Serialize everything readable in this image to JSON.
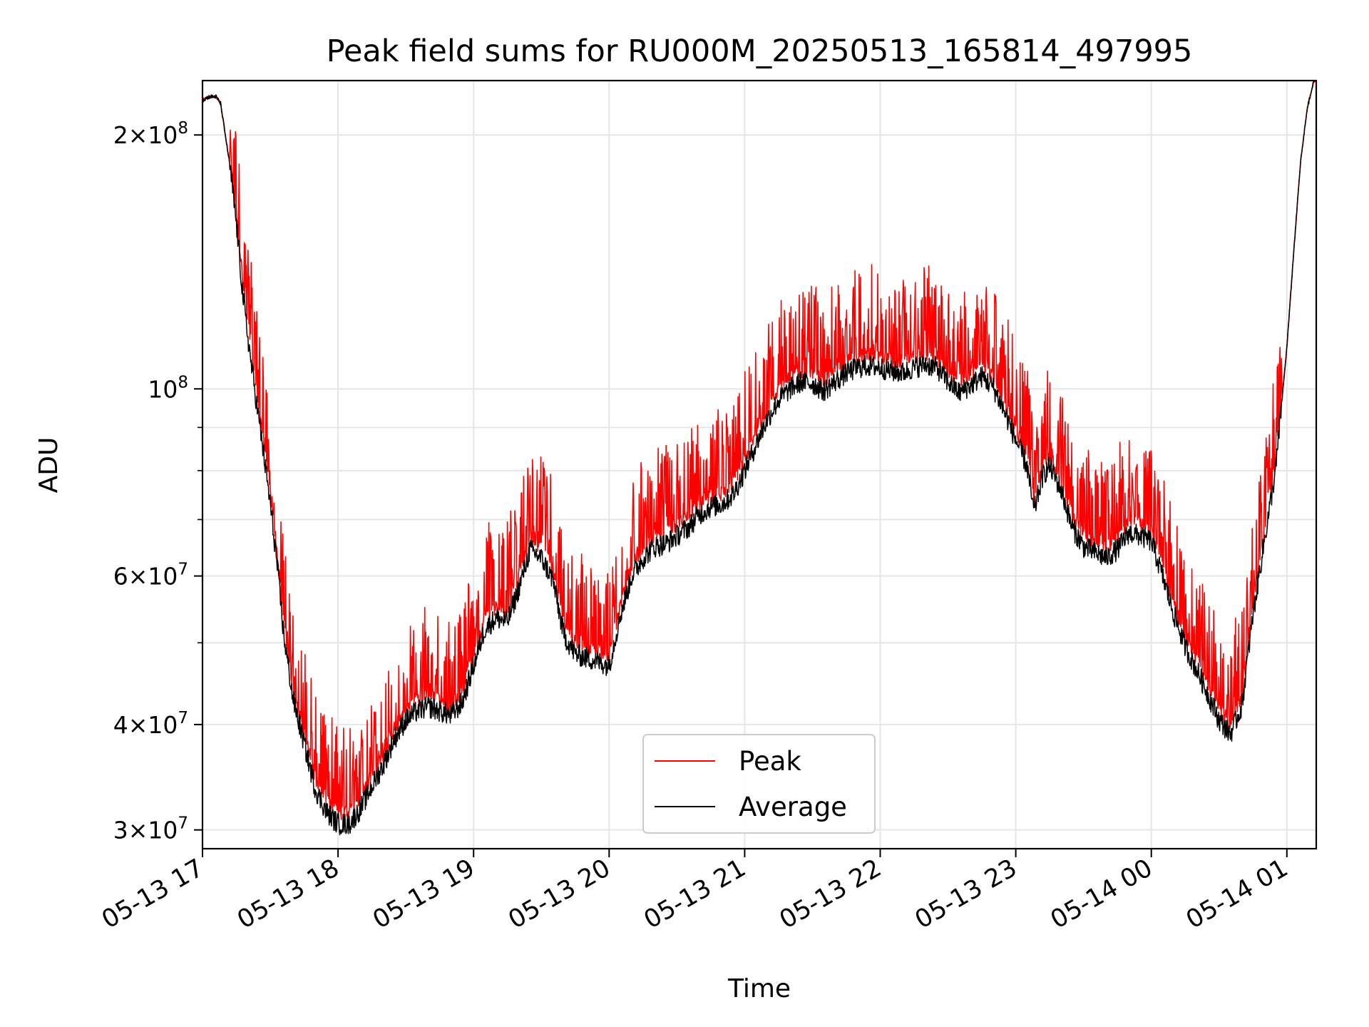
{
  "chart_data": {
    "type": "line",
    "title": "Peak field sums for RU000M_20250513_165814_497995",
    "xlabel": "Time",
    "ylabel": "ADU",
    "x_scale": "time",
    "y_scale": "log",
    "xlim": [
      "2025-05-13T17:00",
      "2025-05-14T01:13"
    ],
    "ylim": [
      28500000,
      232000000
    ],
    "x_ticks": [
      {
        "value": "2025-05-13T17:00",
        "label": "05-13 17"
      },
      {
        "value": "2025-05-13T18:00",
        "label": "05-13 18"
      },
      {
        "value": "2025-05-13T19:00",
        "label": "05-13 19"
      },
      {
        "value": "2025-05-13T20:00",
        "label": "05-13 20"
      },
      {
        "value": "2025-05-13T21:00",
        "label": "05-13 21"
      },
      {
        "value": "2025-05-13T22:00",
        "label": "05-13 22"
      },
      {
        "value": "2025-05-13T23:00",
        "label": "05-13 23"
      },
      {
        "value": "2025-05-14T00:00",
        "label": "05-14 00"
      },
      {
        "value": "2025-05-14T01:00",
        "label": "05-14 01"
      }
    ],
    "y_ticks": [
      {
        "value": 30000000,
        "mantissa": "3",
        "exponent": "7"
      },
      {
        "value": 40000000,
        "mantissa": "4",
        "exponent": "7"
      },
      {
        "value": 60000000,
        "mantissa": "6",
        "exponent": "7"
      },
      {
        "value": 100000000,
        "mantissa": "",
        "exponent": "8"
      },
      {
        "value": 200000000,
        "mantissa": "2",
        "exponent": "8"
      }
    ],
    "y_minor_ticks": [
      50000000,
      70000000,
      80000000,
      90000000
    ],
    "grid": true,
    "legend": {
      "position": "lower-center"
    },
    "series": [
      {
        "name": "Peak",
        "color": "#ff0000",
        "noise": {
          "spike_amplitude": 0.22,
          "spike_probability": 0.45
        },
        "points": [
          [
            "2025-05-13T17:00",
            220000000
          ],
          [
            "2025-05-13T17:03",
            222000000
          ],
          [
            "2025-05-13T17:06",
            222000000
          ],
          [
            "2025-05-13T17:08",
            218000000
          ],
          [
            "2025-05-13T17:12",
            185000000
          ],
          [
            "2025-05-13T17:15",
            157000000
          ],
          [
            "2025-05-13T17:18",
            128000000
          ],
          [
            "2025-05-13T17:21",
            110000000
          ],
          [
            "2025-05-13T17:24",
            96000000
          ],
          [
            "2025-05-13T17:27",
            84000000
          ],
          [
            "2025-05-13T17:30",
            73000000
          ],
          [
            "2025-05-13T17:33",
            62000000
          ],
          [
            "2025-05-13T17:36",
            51000000
          ],
          [
            "2025-05-13T17:40",
            43000000
          ],
          [
            "2025-05-13T17:45",
            38000000
          ],
          [
            "2025-05-13T17:50",
            33500000
          ],
          [
            "2025-05-13T17:55",
            31500000
          ],
          [
            "2025-05-13T18:00",
            30500000
          ],
          [
            "2025-05-13T18:05",
            30500000
          ],
          [
            "2025-05-13T18:10",
            31800000
          ],
          [
            "2025-05-13T18:15",
            33800000
          ],
          [
            "2025-05-13T18:20",
            35800000
          ],
          [
            "2025-05-13T18:25",
            38500000
          ],
          [
            "2025-05-13T18:30",
            40500000
          ],
          [
            "2025-05-13T18:35",
            41500000
          ],
          [
            "2025-05-13T18:40",
            42000000
          ],
          [
            "2025-05-13T18:45",
            41500000
          ],
          [
            "2025-05-13T18:50",
            41000000
          ],
          [
            "2025-05-13T18:55",
            42500000
          ],
          [
            "2025-05-13T19:00",
            47000000
          ],
          [
            "2025-05-13T19:05",
            52000000
          ],
          [
            "2025-05-13T19:10",
            53500000
          ],
          [
            "2025-05-13T19:15",
            53000000
          ],
          [
            "2025-05-13T19:20",
            58000000
          ],
          [
            "2025-05-13T19:25",
            64500000
          ],
          [
            "2025-05-13T19:30",
            63000000
          ],
          [
            "2025-05-13T19:35",
            59500000
          ],
          [
            "2025-05-13T19:40",
            51000000
          ],
          [
            "2025-05-13T19:45",
            48500000
          ],
          [
            "2025-05-13T19:50",
            48000000
          ],
          [
            "2025-05-13T19:55",
            47500000
          ],
          [
            "2025-05-13T20:00",
            47000000
          ],
          [
            "2025-05-13T20:05",
            54000000
          ],
          [
            "2025-05-13T20:10",
            60000000
          ],
          [
            "2025-05-13T20:15",
            63000000
          ],
          [
            "2025-05-13T20:20",
            65000000
          ],
          [
            "2025-05-13T20:25",
            65500000
          ],
          [
            "2025-05-13T20:30",
            67000000
          ],
          [
            "2025-05-13T20:35",
            68500000
          ],
          [
            "2025-05-13T20:40",
            71000000
          ],
          [
            "2025-05-13T20:45",
            72500000
          ],
          [
            "2025-05-13T20:50",
            73000000
          ],
          [
            "2025-05-13T20:55",
            75000000
          ],
          [
            "2025-05-13T21:00",
            80000000
          ],
          [
            "2025-05-13T21:05",
            86000000
          ],
          [
            "2025-05-13T21:10",
            92000000
          ],
          [
            "2025-05-13T21:15",
            97000000
          ],
          [
            "2025-05-13T21:20",
            100000000
          ],
          [
            "2025-05-13T21:25",
            102000000
          ],
          [
            "2025-05-13T21:30",
            101500000
          ],
          [
            "2025-05-13T21:35",
            99500000
          ],
          [
            "2025-05-13T21:40",
            102000000
          ],
          [
            "2025-05-13T21:45",
            104500000
          ],
          [
            "2025-05-13T21:50",
            106000000
          ],
          [
            "2025-05-13T21:55",
            106500000
          ],
          [
            "2025-05-13T22:00",
            106000000
          ],
          [
            "2025-05-13T22:05",
            105000000
          ],
          [
            "2025-05-13T22:10",
            104500000
          ],
          [
            "2025-05-13T22:15",
            106000000
          ],
          [
            "2025-05-13T22:20",
            107000000
          ],
          [
            "2025-05-13T22:25",
            106000000
          ],
          [
            "2025-05-13T22:30",
            102000000
          ],
          [
            "2025-05-13T22:35",
            99000000
          ],
          [
            "2025-05-13T22:40",
            101000000
          ],
          [
            "2025-05-13T22:45",
            103500000
          ],
          [
            "2025-05-13T22:50",
            100500000
          ],
          [
            "2025-05-13T22:55",
            94000000
          ],
          [
            "2025-05-13T23:00",
            87000000
          ],
          [
            "2025-05-13T23:05",
            81000000
          ],
          [
            "2025-05-13T23:08",
            71500000
          ],
          [
            "2025-05-13T23:12",
            79000000
          ],
          [
            "2025-05-13T23:15",
            81000000
          ],
          [
            "2025-05-13T23:20",
            76000000
          ],
          [
            "2025-05-13T23:25",
            68500000
          ],
          [
            "2025-05-13T23:30",
            65000000
          ],
          [
            "2025-05-13T23:35",
            64000000
          ],
          [
            "2025-05-13T23:40",
            63000000
          ],
          [
            "2025-05-13T23:45",
            64500000
          ],
          [
            "2025-05-13T23:50",
            67500000
          ],
          [
            "2025-05-13T23:55",
            67000000
          ],
          [
            "2025-05-14T00:00",
            66000000
          ],
          [
            "2025-05-14T00:05",
            60000000
          ],
          [
            "2025-05-14T00:10",
            54000000
          ],
          [
            "2025-05-14T00:15",
            49500000
          ],
          [
            "2025-05-14T00:20",
            46500000
          ],
          [
            "2025-05-14T00:25",
            43500000
          ],
          [
            "2025-05-14T00:30",
            40500000
          ],
          [
            "2025-05-14T00:35",
            39000000
          ],
          [
            "2025-05-14T00:40",
            42000000
          ],
          [
            "2025-05-14T00:45",
            54000000
          ],
          [
            "2025-05-14T00:50",
            66000000
          ],
          [
            "2025-05-14T00:55",
            80000000
          ],
          [
            "2025-05-14T01:00",
            112000000
          ],
          [
            "2025-05-14T01:03",
            145000000
          ],
          [
            "2025-05-14T01:06",
            185000000
          ],
          [
            "2025-05-14T01:09",
            215000000
          ],
          [
            "2025-05-14T01:12",
            232000000
          ],
          [
            "2025-05-14T01:13",
            232000000
          ]
        ]
      },
      {
        "name": "Average",
        "color": "#000000",
        "noise": {
          "jitter_amplitude": 0.03
        },
        "points": [
          [
            "2025-05-13T17:00",
            220000000
          ],
          [
            "2025-05-13T17:03",
            222000000
          ],
          [
            "2025-05-13T17:06",
            222000000
          ],
          [
            "2025-05-13T17:08",
            218000000
          ],
          [
            "2025-05-13T17:12",
            185000000
          ],
          [
            "2025-05-13T17:15",
            157000000
          ],
          [
            "2025-05-13T17:18",
            128000000
          ],
          [
            "2025-05-13T17:21",
            110000000
          ],
          [
            "2025-05-13T17:24",
            96000000
          ],
          [
            "2025-05-13T17:27",
            84000000
          ],
          [
            "2025-05-13T17:30",
            73000000
          ],
          [
            "2025-05-13T17:33",
            62000000
          ],
          [
            "2025-05-13T17:36",
            51000000
          ],
          [
            "2025-05-13T17:40",
            43000000
          ],
          [
            "2025-05-13T17:45",
            38000000
          ],
          [
            "2025-05-13T17:50",
            33500000
          ],
          [
            "2025-05-13T17:55",
            31500000
          ],
          [
            "2025-05-13T18:00",
            30500000
          ],
          [
            "2025-05-13T18:05",
            30500000
          ],
          [
            "2025-05-13T18:10",
            31800000
          ],
          [
            "2025-05-13T18:15",
            33800000
          ],
          [
            "2025-05-13T18:20",
            35800000
          ],
          [
            "2025-05-13T18:25",
            38500000
          ],
          [
            "2025-05-13T18:30",
            40500000
          ],
          [
            "2025-05-13T18:35",
            41500000
          ],
          [
            "2025-05-13T18:40",
            42000000
          ],
          [
            "2025-05-13T18:45",
            41500000
          ],
          [
            "2025-05-13T18:50",
            41000000
          ],
          [
            "2025-05-13T18:55",
            42500000
          ],
          [
            "2025-05-13T19:00",
            47000000
          ],
          [
            "2025-05-13T19:05",
            52000000
          ],
          [
            "2025-05-13T19:10",
            53500000
          ],
          [
            "2025-05-13T19:15",
            53000000
          ],
          [
            "2025-05-13T19:20",
            58000000
          ],
          [
            "2025-05-13T19:25",
            64500000
          ],
          [
            "2025-05-13T19:30",
            63000000
          ],
          [
            "2025-05-13T19:35",
            59500000
          ],
          [
            "2025-05-13T19:40",
            51000000
          ],
          [
            "2025-05-13T19:45",
            48500000
          ],
          [
            "2025-05-13T19:50",
            48000000
          ],
          [
            "2025-05-13T19:55",
            47500000
          ],
          [
            "2025-05-13T20:00",
            47000000
          ],
          [
            "2025-05-13T20:05",
            54000000
          ],
          [
            "2025-05-13T20:10",
            60000000
          ],
          [
            "2025-05-13T20:15",
            63000000
          ],
          [
            "2025-05-13T20:20",
            65000000
          ],
          [
            "2025-05-13T20:25",
            65500000
          ],
          [
            "2025-05-13T20:30",
            67000000
          ],
          [
            "2025-05-13T20:35",
            68500000
          ],
          [
            "2025-05-13T20:40",
            71000000
          ],
          [
            "2025-05-13T20:45",
            72500000
          ],
          [
            "2025-05-13T20:50",
            73000000
          ],
          [
            "2025-05-13T20:55",
            75000000
          ],
          [
            "2025-05-13T21:00",
            80000000
          ],
          [
            "2025-05-13T21:05",
            86000000
          ],
          [
            "2025-05-13T21:10",
            92000000
          ],
          [
            "2025-05-13T21:15",
            97000000
          ],
          [
            "2025-05-13T21:20",
            100000000
          ],
          [
            "2025-05-13T21:25",
            102000000
          ],
          [
            "2025-05-13T21:30",
            101500000
          ],
          [
            "2025-05-13T21:35",
            99500000
          ],
          [
            "2025-05-13T21:40",
            102000000
          ],
          [
            "2025-05-13T21:45",
            104500000
          ],
          [
            "2025-05-13T21:50",
            106000000
          ],
          [
            "2025-05-13T21:55",
            106500000
          ],
          [
            "2025-05-13T22:00",
            106000000
          ],
          [
            "2025-05-13T22:05",
            105000000
          ],
          [
            "2025-05-13T22:10",
            104500000
          ],
          [
            "2025-05-13T22:15",
            106000000
          ],
          [
            "2025-05-13T22:20",
            107000000
          ],
          [
            "2025-05-13T22:25",
            106000000
          ],
          [
            "2025-05-13T22:30",
            102000000
          ],
          [
            "2025-05-13T22:35",
            99000000
          ],
          [
            "2025-05-13T22:40",
            101000000
          ],
          [
            "2025-05-13T22:45",
            103500000
          ],
          [
            "2025-05-13T22:50",
            100500000
          ],
          [
            "2025-05-13T22:55",
            94000000
          ],
          [
            "2025-05-13T23:00",
            87000000
          ],
          [
            "2025-05-13T23:05",
            81000000
          ],
          [
            "2025-05-13T23:08",
            71500000
          ],
          [
            "2025-05-13T23:12",
            79000000
          ],
          [
            "2025-05-13T23:15",
            81000000
          ],
          [
            "2025-05-13T23:20",
            76000000
          ],
          [
            "2025-05-13T23:25",
            68500000
          ],
          [
            "2025-05-13T23:30",
            65000000
          ],
          [
            "2025-05-13T23:35",
            64000000
          ],
          [
            "2025-05-13T23:40",
            63000000
          ],
          [
            "2025-05-13T23:45",
            64500000
          ],
          [
            "2025-05-13T23:50",
            67500000
          ],
          [
            "2025-05-13T23:55",
            67000000
          ],
          [
            "2025-05-14T00:00",
            66000000
          ],
          [
            "2025-05-14T00:05",
            60000000
          ],
          [
            "2025-05-14T00:10",
            54000000
          ],
          [
            "2025-05-14T00:15",
            49500000
          ],
          [
            "2025-05-14T00:20",
            46500000
          ],
          [
            "2025-05-14T00:25",
            43500000
          ],
          [
            "2025-05-14T00:30",
            40500000
          ],
          [
            "2025-05-14T00:35",
            39000000
          ],
          [
            "2025-05-14T00:40",
            42000000
          ],
          [
            "2025-05-14T00:45",
            54000000
          ],
          [
            "2025-05-14T00:50",
            66000000
          ],
          [
            "2025-05-14T00:55",
            80000000
          ],
          [
            "2025-05-14T01:00",
            112000000
          ],
          [
            "2025-05-14T01:03",
            145000000
          ],
          [
            "2025-05-14T01:06",
            185000000
          ],
          [
            "2025-05-14T01:09",
            215000000
          ],
          [
            "2025-05-14T01:12",
            232000000
          ],
          [
            "2025-05-14T01:13",
            232000000
          ]
        ]
      }
    ]
  }
}
